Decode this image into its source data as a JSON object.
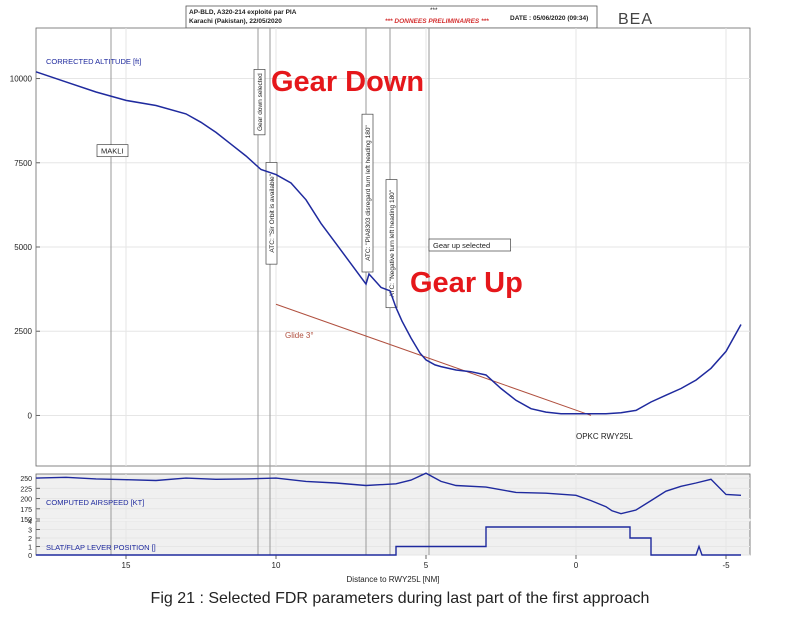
{
  "header": {
    "aircraft": "AP-BLD, A320-214 exploité par PIA",
    "flight": "Karachi (Pakistan), 22/05/2020",
    "stars": "***",
    "status": "*** DONNEES PRELIMINAIRES ***",
    "date": "DATE : 05/06/2020 (09:34)",
    "logo": "BEA"
  },
  "colors": {
    "series": "#1f2a9e",
    "glide": "#b0503f",
    "callout": "#e5171b",
    "status": "#d43030",
    "grid": "#e6e6e6",
    "marker": "#9a9a9a",
    "panel_bg": "#f0f0f0"
  },
  "chart_data": [
    {
      "type": "line",
      "panel": "altitude",
      "ylabel": "CORRECTED ALTITUDE [ft]",
      "ylim": [
        -1500,
        11500
      ],
      "yticks": [
        0,
        2500,
        5000,
        7500,
        10000
      ],
      "xlim": [
        18,
        -5.8
      ],
      "xticks": [
        15,
        10,
        5,
        0,
        -5
      ],
      "xticks_rev": [
        -5,
        0,
        5,
        10,
        15
      ],
      "xlabel": "Distance to RWY25L [NM]",
      "grid": true,
      "series": [
        {
          "x": [
            18,
            17,
            16,
            15,
            14,
            13,
            12.5,
            12,
            11.5,
            11,
            10.5,
            10,
            9.5,
            9,
            8.5,
            8,
            7.5,
            7,
            6.9,
            6.5,
            6.2,
            6,
            5.8,
            5.5,
            5.2,
            5,
            4.7,
            4.5,
            4,
            3.5,
            3,
            2.5,
            2,
            1.5,
            1,
            0.5,
            0,
            -0.5,
            -1,
            -1.5,
            -2,
            -2.5,
            -3,
            -3.5,
            -4,
            -4.5,
            -5,
            -5.5
          ],
          "values": [
            10200,
            9900,
            9600,
            9350,
            9200,
            8950,
            8700,
            8400,
            8050,
            7700,
            7300,
            7150,
            6900,
            6400,
            5700,
            5100,
            4500,
            3900,
            4200,
            3800,
            3700,
            3200,
            2800,
            2300,
            1850,
            1650,
            1500,
            1450,
            1350,
            1300,
            1200,
            800,
            450,
            200,
            100,
            50,
            50,
            50,
            50,
            80,
            150,
            400,
            600,
            800,
            1050,
            1400,
            1900,
            2700
          ]
        }
      ]
    },
    {
      "type": "line",
      "panel": "airspeed",
      "ylabel": "COMPUTED AIRSPEED [KT]",
      "ylim": [
        150,
        260
      ],
      "yticks": [
        150,
        175,
        200,
        225,
        250
      ],
      "series": [
        {
          "x": [
            18,
            17,
            16,
            15,
            14,
            13,
            12,
            11,
            10,
            9,
            8,
            7,
            6,
            5.5,
            5,
            4.5,
            4,
            3,
            2,
            1,
            0,
            -0.5,
            -1,
            -1.2,
            -1.5,
            -2,
            -2.5,
            -3,
            -3.5,
            -4,
            -4.5,
            -5,
            -5.5
          ],
          "values": [
            250,
            252,
            248,
            246,
            244,
            250,
            247,
            248,
            250,
            242,
            238,
            232,
            236,
            245,
            262,
            242,
            232,
            228,
            215,
            213,
            208,
            195,
            180,
            170,
            163,
            172,
            195,
            218,
            230,
            238,
            247,
            210,
            208
          ]
        }
      ]
    },
    {
      "type": "line",
      "panel": "slat_flap",
      "ylabel": "SLAT/FLAP LEVER POSITION []",
      "ylim": [
        0,
        4
      ],
      "yticks": [
        0,
        1,
        2,
        3,
        4
      ],
      "series": [
        {
          "x": [
            18,
            6,
            6,
            3,
            3,
            -1.8,
            -1.8,
            -2.5,
            -2.5,
            -4,
            -4.1,
            -4.2,
            -5.5
          ],
          "values": [
            0,
            0,
            1,
            1,
            3.3,
            3.3,
            2,
            2,
            0,
            0,
            1,
            0,
            0
          ]
        }
      ]
    }
  ],
  "glide": {
    "label": "Glide 3°",
    "x": [
      10,
      -0.5
    ],
    "values": [
      3300,
      0
    ]
  },
  "markers": [
    {
      "x": 15.5,
      "label": "MAKLI",
      "y": 7800
    },
    {
      "x": 10.6,
      "label": "Gear down selected",
      "y": 9300
    },
    {
      "x": 10.2,
      "label": "ATC: \"Sir Orbit is available\"",
      "y": 6000
    },
    {
      "x": 7,
      "label": "ATC: \"PIA8303 disregard turn left heading 180\"",
      "y": 6600
    },
    {
      "x": 6.2,
      "label": "ATC: \"Negative turn left heading 180\"",
      "y": 5100
    },
    {
      "x": 4.9,
      "label": "Gear up selected",
      "y": 5000
    }
  ],
  "runway_label": "OPKC RWY25L",
  "callouts": {
    "gear_down": "Gear Down",
    "gear_up": "Gear Up"
  },
  "caption": "Fig 21 :  Selected FDR parameters during last part of the first approach"
}
